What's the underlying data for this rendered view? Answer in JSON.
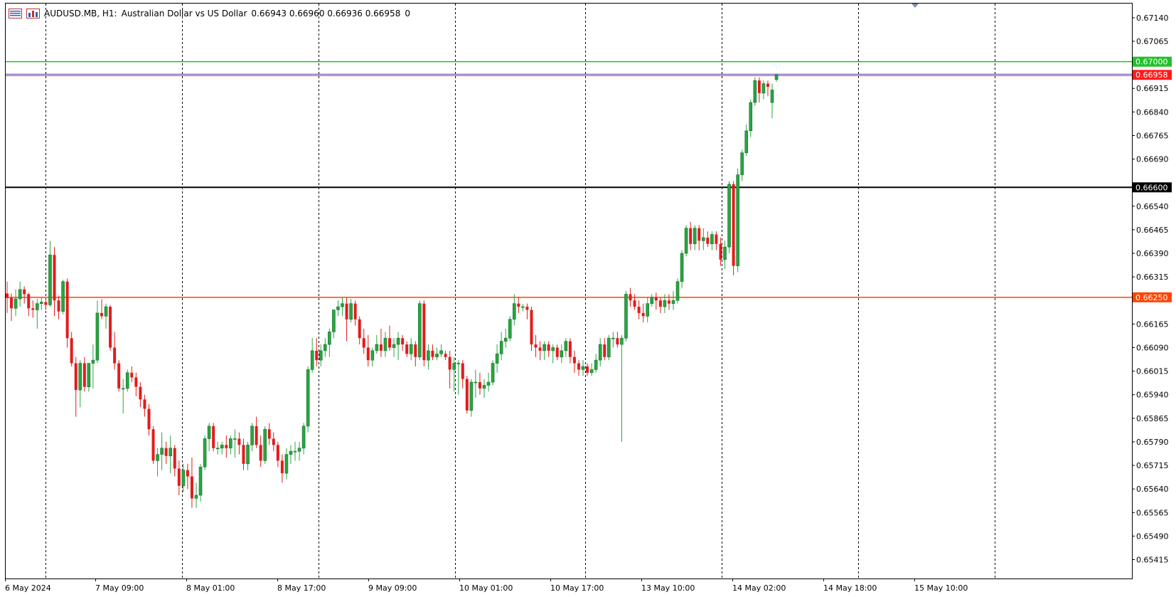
{
  "header": {
    "symbol": "AUDUSD.MB, H1:",
    "description": "Australian Dollar vs US Dollar",
    "ohlc": "0.66943 0.66960 0.66936 0.66958",
    "volume": "0"
  },
  "colors": {
    "bull": "#26a641",
    "bear": "#e31b1b",
    "grid": "#000000",
    "green_line": "#22c02a",
    "red_line": "#ff4500",
    "black_line": "#000000",
    "bid_line": "#4040c0",
    "bid_label": "#ff1a1a"
  },
  "chart_data": {
    "type": "candlestick",
    "symbol": "AUDUSD.MB",
    "timeframe": "H1",
    "ylim": [
      0.65355,
      0.67185
    ],
    "y_ticks": [
      "0.67140",
      "0.67065",
      "0.66915",
      "0.66840",
      "0.66765",
      "0.66690",
      "0.66540",
      "0.66465",
      "0.66390",
      "0.66315",
      "0.66165",
      "0.66090",
      "0.66015",
      "0.65940",
      "0.65865",
      "0.65790",
      "0.65715",
      "0.65640",
      "0.65565",
      "0.65490",
      "0.65415"
    ],
    "x_labels": [
      "6 May 2024",
      "7 May 09:00",
      "8 May 01:00",
      "8 May 17:00",
      "9 May 09:00",
      "10 May 01:00",
      "10 May 17:00",
      "13 May 10:00",
      "14 May 02:00",
      "14 May 18:00",
      "15 May 10:00"
    ],
    "levels": [
      {
        "value": 0.67,
        "label": "0.67000",
        "role": "green"
      },
      {
        "value": 0.66958,
        "label": "0.66958",
        "role": "bid"
      },
      {
        "value": 0.666,
        "label": "0.66600",
        "role": "black"
      },
      {
        "value": 0.6625,
        "label": "0.66250",
        "role": "red"
      }
    ],
    "candles": [
      [
        0.66262,
        0.663,
        0.662,
        0.66248
      ],
      [
        0.66248,
        0.66262,
        0.66175,
        0.66215
      ],
      [
        0.66215,
        0.66275,
        0.6619,
        0.66245
      ],
      [
        0.66245,
        0.663,
        0.6622,
        0.66275
      ],
      [
        0.66275,
        0.66285,
        0.6623,
        0.6626
      ],
      [
        0.6626,
        0.66265,
        0.6619,
        0.66215
      ],
      [
        0.66215,
        0.6624,
        0.66185,
        0.6621
      ],
      [
        0.6621,
        0.66245,
        0.6615,
        0.6623
      ],
      [
        0.6623,
        0.6625,
        0.6621,
        0.66235
      ],
      [
        0.66235,
        0.66245,
        0.6621,
        0.66226
      ],
      [
        0.66226,
        0.6643,
        0.6622,
        0.66385
      ],
      [
        0.66385,
        0.6641,
        0.6619,
        0.6624
      ],
      [
        0.6624,
        0.66255,
        0.6618,
        0.66205
      ],
      [
        0.66205,
        0.66306,
        0.66196,
        0.663
      ],
      [
        0.663,
        0.6631,
        0.6609,
        0.6612
      ],
      [
        0.6612,
        0.6614,
        0.6603,
        0.6604
      ],
      [
        0.6604,
        0.6606,
        0.6587,
        0.65955
      ],
      [
        0.65955,
        0.6605,
        0.659,
        0.6604
      ],
      [
        0.6604,
        0.6606,
        0.6595,
        0.65965
      ],
      [
        0.65965,
        0.6604,
        0.6595,
        0.6604
      ],
      [
        0.6604,
        0.661,
        0.6596,
        0.6605
      ],
      [
        0.6605,
        0.6624,
        0.6604,
        0.662
      ],
      [
        0.662,
        0.66244,
        0.6618,
        0.6619
      ],
      [
        0.6619,
        0.6623,
        0.6615,
        0.6622
      ],
      [
        0.6622,
        0.66225,
        0.6608,
        0.6609
      ],
      [
        0.6609,
        0.6614,
        0.6602,
        0.6604
      ],
      [
        0.6604,
        0.6605,
        0.6595,
        0.6596
      ],
      [
        0.6596,
        0.6599,
        0.6588,
        0.6596
      ],
      [
        0.6596,
        0.6602,
        0.6595,
        0.6601
      ],
      [
        0.6601,
        0.6603,
        0.6598,
        0.65995
      ],
      [
        0.65995,
        0.6601,
        0.65935,
        0.65965
      ],
      [
        0.65965,
        0.6598,
        0.659,
        0.65925
      ],
      [
        0.65925,
        0.6594,
        0.6587,
        0.65895
      ],
      [
        0.65895,
        0.6591,
        0.6581,
        0.6583
      ],
      [
        0.6583,
        0.6584,
        0.6572,
        0.6573
      ],
      [
        0.6573,
        0.6577,
        0.6568,
        0.6575
      ],
      [
        0.6575,
        0.6582,
        0.657,
        0.6577
      ],
      [
        0.6577,
        0.6579,
        0.6572,
        0.65745
      ],
      [
        0.65745,
        0.6581,
        0.6569,
        0.6577
      ],
      [
        0.6577,
        0.6578,
        0.6568,
        0.65705
      ],
      [
        0.65705,
        0.6573,
        0.6562,
        0.6565
      ],
      [
        0.6565,
        0.6572,
        0.6563,
        0.657
      ],
      [
        0.657,
        0.6572,
        0.6564,
        0.6568
      ],
      [
        0.6568,
        0.6574,
        0.6558,
        0.6561
      ],
      [
        0.6561,
        0.6566,
        0.6558,
        0.6562
      ],
      [
        0.6562,
        0.6572,
        0.656,
        0.6571
      ],
      [
        0.6571,
        0.6581,
        0.657,
        0.658
      ],
      [
        0.658,
        0.6585,
        0.6576,
        0.6584
      ],
      [
        0.6584,
        0.6585,
        0.6576,
        0.6577
      ],
      [
        0.6577,
        0.6579,
        0.6575,
        0.6577
      ],
      [
        0.6577,
        0.6579,
        0.6575,
        0.6578
      ],
      [
        0.6578,
        0.6581,
        0.6574,
        0.6577
      ],
      [
        0.6577,
        0.6581,
        0.6575,
        0.658
      ],
      [
        0.658,
        0.6583,
        0.6574,
        0.658
      ],
      [
        0.658,
        0.6582,
        0.6575,
        0.6578
      ],
      [
        0.6578,
        0.658,
        0.657,
        0.6572
      ],
      [
        0.6572,
        0.6579,
        0.657,
        0.6578
      ],
      [
        0.6578,
        0.6585,
        0.6576,
        0.6584
      ],
      [
        0.6584,
        0.6587,
        0.6577,
        0.6578
      ],
      [
        0.6578,
        0.6581,
        0.6571,
        0.6573
      ],
      [
        0.6573,
        0.6584,
        0.6572,
        0.6583
      ],
      [
        0.6583,
        0.6585,
        0.6578,
        0.658
      ],
      [
        0.658,
        0.6582,
        0.6576,
        0.6578
      ],
      [
        0.6578,
        0.6579,
        0.6571,
        0.6573
      ],
      [
        0.6573,
        0.6575,
        0.6566,
        0.6569
      ],
      [
        0.6569,
        0.6577,
        0.6567,
        0.6575
      ],
      [
        0.6575,
        0.6578,
        0.6572,
        0.6576
      ],
      [
        0.6576,
        0.6579,
        0.6573,
        0.6576
      ],
      [
        0.6576,
        0.6579,
        0.6573,
        0.6577
      ],
      [
        0.6577,
        0.6585,
        0.6575,
        0.6584
      ],
      [
        0.6584,
        0.6603,
        0.6582,
        0.6602
      ],
      [
        0.6602,
        0.6612,
        0.6601,
        0.6608
      ],
      [
        0.6608,
        0.6612,
        0.6603,
        0.6605
      ],
      [
        0.6605,
        0.661,
        0.6603,
        0.6608
      ],
      [
        0.6608,
        0.6612,
        0.6606,
        0.661
      ],
      [
        0.661,
        0.6615,
        0.6606,
        0.6614
      ],
      [
        0.6614,
        0.6621,
        0.6612,
        0.6621
      ],
      [
        0.6621,
        0.6624,
        0.6619,
        0.6622
      ],
      [
        0.6622,
        0.6625,
        0.6619,
        0.6623
      ],
      [
        0.6623,
        0.6625,
        0.6611,
        0.6618
      ],
      [
        0.6618,
        0.66245,
        0.6617,
        0.6623
      ],
      [
        0.6623,
        0.6624,
        0.6616,
        0.6618
      ],
      [
        0.6618,
        0.6619,
        0.661,
        0.6612
      ],
      [
        0.6612,
        0.6615,
        0.6607,
        0.6609
      ],
      [
        0.6609,
        0.6613,
        0.6603,
        0.6605
      ],
      [
        0.6605,
        0.6609,
        0.6603,
        0.6608
      ],
      [
        0.6608,
        0.6613,
        0.6607,
        0.661
      ],
      [
        0.661,
        0.6615,
        0.6606,
        0.6608
      ],
      [
        0.6608,
        0.6614,
        0.6606,
        0.6612
      ],
      [
        0.6612,
        0.6616,
        0.6608,
        0.6609
      ],
      [
        0.6609,
        0.6612,
        0.6606,
        0.661
      ],
      [
        0.661,
        0.6614,
        0.6605,
        0.6612
      ],
      [
        0.6612,
        0.6613,
        0.6608,
        0.661
      ],
      [
        0.661,
        0.6611,
        0.6606,
        0.6607
      ],
      [
        0.6607,
        0.6612,
        0.6605,
        0.661
      ],
      [
        0.661,
        0.6611,
        0.6603,
        0.6606
      ],
      [
        0.6606,
        0.6624,
        0.6605,
        0.6623
      ],
      [
        0.6623,
        0.6624,
        0.6603,
        0.6605
      ],
      [
        0.6605,
        0.661,
        0.6602,
        0.6608
      ],
      [
        0.6608,
        0.661,
        0.6605,
        0.6606
      ],
      [
        0.6606,
        0.6609,
        0.6605,
        0.6607
      ],
      [
        0.6607,
        0.661,
        0.6606,
        0.6608
      ],
      [
        0.6607,
        0.6608,
        0.6605,
        0.6606
      ],
      [
        0.6606,
        0.6608,
        0.6596,
        0.6602
      ],
      [
        0.6602,
        0.6606,
        0.6595,
        0.6604
      ],
      [
        0.6604,
        0.6605,
        0.6594,
        0.6604
      ],
      [
        0.6604,
        0.6605,
        0.6596,
        0.6599
      ],
      [
        0.6599,
        0.66,
        0.6588,
        0.6589
      ],
      [
        0.6589,
        0.6599,
        0.6587,
        0.6598
      ],
      [
        0.6598,
        0.6602,
        0.6593,
        0.6598
      ],
      [
        0.6598,
        0.6601,
        0.6594,
        0.6596
      ],
      [
        0.6596,
        0.6599,
        0.6593,
        0.6597
      ],
      [
        0.6597,
        0.6601,
        0.6595,
        0.6598
      ],
      [
        0.6598,
        0.6605,
        0.6597,
        0.6604
      ],
      [
        0.6604,
        0.661,
        0.6601,
        0.6607
      ],
      [
        0.6607,
        0.6614,
        0.6605,
        0.6611
      ],
      [
        0.6611,
        0.6615,
        0.6609,
        0.6612
      ],
      [
        0.6612,
        0.6619,
        0.6611,
        0.6618
      ],
      [
        0.6618,
        0.6626,
        0.6616,
        0.6623
      ],
      [
        0.6623,
        0.6625,
        0.662,
        0.6622
      ],
      [
        0.6622,
        0.66228,
        0.66205,
        0.6622
      ],
      [
        0.6622,
        0.6623,
        0.6618,
        0.6621
      ],
      [
        0.6621,
        0.6622,
        0.6608,
        0.661
      ],
      [
        0.661,
        0.6613,
        0.6606,
        0.6609
      ],
      [
        0.6609,
        0.6611,
        0.6605,
        0.6608
      ],
      [
        0.6608,
        0.6611,
        0.6605,
        0.661
      ],
      [
        0.661,
        0.6611,
        0.6606,
        0.6608
      ],
      [
        0.6608,
        0.661,
        0.6604,
        0.6609
      ],
      [
        0.6609,
        0.661,
        0.6605,
        0.6606
      ],
      [
        0.6606,
        0.661,
        0.6604,
        0.6608
      ],
      [
        0.6608,
        0.6612,
        0.6606,
        0.6611
      ],
      [
        0.6611,
        0.6612,
        0.6604,
        0.6606
      ],
      [
        0.6606,
        0.6608,
        0.6601,
        0.6604
      ],
      [
        0.6604,
        0.6605,
        0.66,
        0.6602
      ],
      [
        0.6602,
        0.6605,
        0.66,
        0.6603
      ],
      [
        0.6603,
        0.6604,
        0.66,
        0.6601
      ],
      [
        0.6601,
        0.6604,
        0.66,
        0.6602
      ],
      [
        0.6602,
        0.6607,
        0.6601,
        0.6605
      ],
      [
        0.6605,
        0.6612,
        0.6603,
        0.661
      ],
      [
        0.661,
        0.6612,
        0.6605,
        0.6606
      ],
      [
        0.6606,
        0.6613,
        0.6605,
        0.6612
      ],
      [
        0.6612,
        0.6614,
        0.6609,
        0.6612
      ],
      [
        0.6612,
        0.6614,
        0.6609,
        0.661
      ],
      [
        0.661,
        0.6613,
        0.6579,
        0.6612
      ],
      [
        0.6612,
        0.6627,
        0.6611,
        0.6626
      ],
      [
        0.6626,
        0.6628,
        0.6622,
        0.6624
      ],
      [
        0.6624,
        0.6626,
        0.6621,
        0.6622
      ],
      [
        0.6622,
        0.6624,
        0.6618,
        0.662
      ],
      [
        0.662,
        0.6623,
        0.6617,
        0.6619
      ],
      [
        0.6619,
        0.6625,
        0.6617,
        0.6623
      ],
      [
        0.6623,
        0.6626,
        0.6622,
        0.6625
      ],
      [
        0.6625,
        0.66265,
        0.6621,
        0.6624
      ],
      [
        0.6624,
        0.6625,
        0.662,
        0.6622
      ],
      [
        0.6622,
        0.6626,
        0.662,
        0.6624
      ],
      [
        0.6624,
        0.6626,
        0.6621,
        0.6623
      ],
      [
        0.6623,
        0.6627,
        0.6621,
        0.6624
      ],
      [
        0.6624,
        0.6631,
        0.6623,
        0.663
      ],
      [
        0.663,
        0.664,
        0.6628,
        0.6639
      ],
      [
        0.6639,
        0.6648,
        0.6638,
        0.6647
      ],
      [
        0.6647,
        0.6649,
        0.664,
        0.6642
      ],
      [
        0.6642,
        0.6648,
        0.664,
        0.6647
      ],
      [
        0.6647,
        0.6648,
        0.664,
        0.6643
      ],
      [
        0.6643,
        0.6647,
        0.664,
        0.6644
      ],
      [
        0.6644,
        0.6646,
        0.6641,
        0.6642
      ],
      [
        0.6642,
        0.6646,
        0.664,
        0.6645
      ],
      [
        0.6645,
        0.6646,
        0.664,
        0.6642
      ],
      [
        0.6642,
        0.6644,
        0.6635,
        0.6637
      ],
      [
        0.6637,
        0.6643,
        0.6634,
        0.6641
      ],
      [
        0.6641,
        0.6662,
        0.6639,
        0.6661
      ],
      [
        0.6661,
        0.6662,
        0.6632,
        0.6635
      ],
      [
        0.6635,
        0.6666,
        0.6633,
        0.6664
      ],
      [
        0.6664,
        0.6672,
        0.6662,
        0.6671
      ],
      [
        0.6671,
        0.668,
        0.667,
        0.6678
      ],
      [
        0.6678,
        0.6688,
        0.6676,
        0.6687
      ],
      [
        0.6687,
        0.6695,
        0.6686,
        0.6694
      ],
      [
        0.6694,
        0.6695,
        0.6687,
        0.669
      ],
      [
        0.669,
        0.6694,
        0.6688,
        0.6693
      ],
      [
        0.6693,
        0.6694,
        0.6689,
        0.6692
      ],
      [
        0.6687,
        0.6693,
        0.6682,
        0.6691
      ],
      [
        0.66943,
        0.6696,
        0.66936,
        0.66958
      ]
    ]
  }
}
